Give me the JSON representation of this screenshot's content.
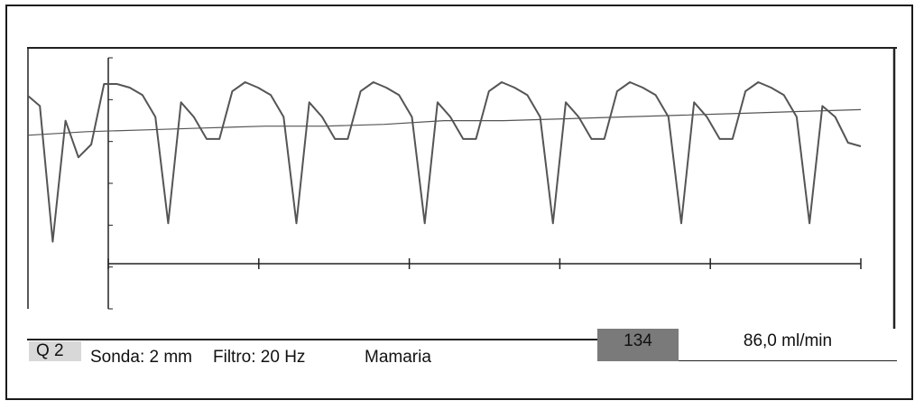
{
  "status": {
    "probe": "Q 2",
    "probe_size": "Sonda: 2 mm",
    "filter": "Filtro: 20 Hz",
    "vessel": "Mamaria",
    "pi_value": "134",
    "flow": "86,0 ml/min"
  },
  "colors": {
    "trace": "#555555",
    "axis": "#222222",
    "pi_box": "#7a7a7a",
    "probe_box": "#d8d8d8"
  },
  "chart_data": {
    "type": "line",
    "series": [
      {
        "values": [
          72,
          66,
          -8,
          58,
          38,
          45,
          78,
          78,
          76,
          72,
          60,
          2,
          68,
          60,
          48,
          48,
          74,
          79,
          76,
          72,
          60,
          2,
          68,
          60,
          48,
          48,
          74,
          79,
          76,
          72,
          60,
          2,
          68,
          60,
          48,
          48,
          74,
          79,
          76,
          72,
          60,
          2,
          68,
          60,
          48,
          48,
          74,
          79,
          76,
          72,
          60,
          2,
          68,
          60,
          48,
          48,
          74,
          79,
          76,
          72,
          60,
          2,
          66,
          60,
          46,
          44
        ]
      },
      {
        "values": [
          50,
          52,
          53,
          54,
          55,
          55,
          56,
          58,
          58,
          59,
          60,
          61,
          62,
          63,
          64
        ]
      }
    ],
    "x_ticks": 6,
    "y_ticks": 7,
    "grid": false,
    "xlabel": "",
    "ylabel": ""
  }
}
